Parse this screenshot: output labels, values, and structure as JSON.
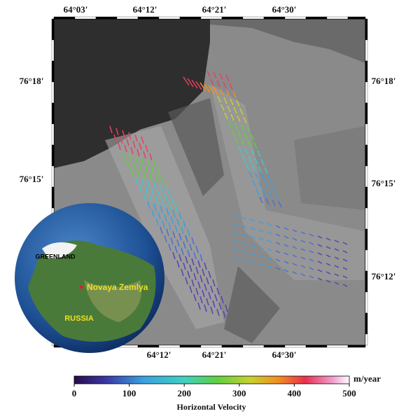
{
  "map": {
    "top_labels": [
      "64°03'",
      "64°12'",
      "64°21'",
      "64°30'"
    ],
    "bottom_labels": [
      "64°12'",
      "64°21'",
      "64°30'"
    ],
    "left_labels": [
      "76°18'",
      "76°15'"
    ],
    "right_labels": [
      "76°18'",
      "76°15'",
      "76°12'"
    ]
  },
  "inset": {
    "labels": [
      "GREENLAND",
      "Novaya Zemlya",
      "RUSSIA"
    ]
  },
  "colorbar": {
    "ticks": [
      0,
      100,
      200,
      300,
      400,
      500
    ],
    "unit": "m/year",
    "title": "Horizontal Velocity"
  }
}
